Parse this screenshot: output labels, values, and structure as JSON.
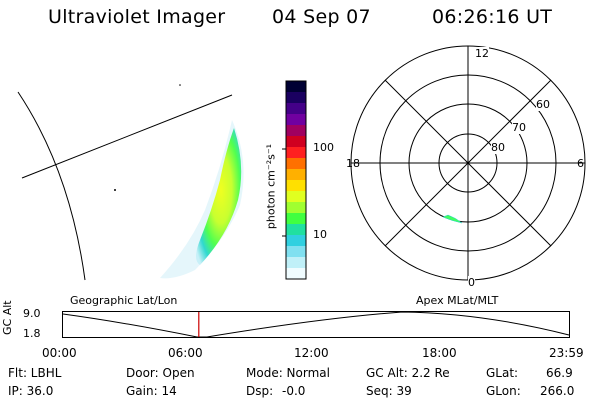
{
  "header": {
    "title": "Ultraviolet Imager",
    "date": "04 Sep 07",
    "time": "06:26:16 UT"
  },
  "colorbar": {
    "unit_label": "photon cm⁻²s⁻¹",
    "ticks": [
      {
        "value": 100,
        "label": "100"
      },
      {
        "value": 10,
        "label": "10"
      }
    ],
    "colors": [
      "#000033",
      "#1a0060",
      "#440088",
      "#7000a0",
      "#a00060",
      "#d00020",
      "#ff2020",
      "#ff7000",
      "#ffb000",
      "#ffe000",
      "#e0ff20",
      "#a0ff30",
      "#40ff40",
      "#20e0a0",
      "#30d0e0",
      "#80e0f0",
      "#c0f0f8",
      "#f0fcff"
    ]
  },
  "polar": {
    "mlt_labels": {
      "top": "12",
      "right": "6",
      "bottom": "0",
      "left": "18"
    },
    "lat_labels": [
      "60",
      "70",
      "80"
    ]
  },
  "timeline": {
    "axis_label": "GC Alt",
    "left_label": "Geographic Lat/Lon",
    "right_label": "Apex MLat/MLT",
    "y_max": "9.0",
    "y_min": "1.8",
    "x_ticks": [
      "00:00",
      "06:00",
      "12:00",
      "18:00",
      "23:59"
    ],
    "marker_time_hours": 6.44,
    "marker_color": "#cc0000"
  },
  "info": {
    "flt": "Flt: LBHL",
    "door": "Door: Open",
    "mode": "Mode: Normal",
    "gc_alt": "GC Alt: 2.2 Re",
    "glat": "GLat:",
    "glat_val": "66.9",
    "ip": "IP: 36.0",
    "gain": "Gain: 14",
    "dsp": "Dsp:",
    "dsp_val": "-0.0",
    "seq": "Seq: 39",
    "glon": "GLon:",
    "glon_val": "266.0"
  }
}
